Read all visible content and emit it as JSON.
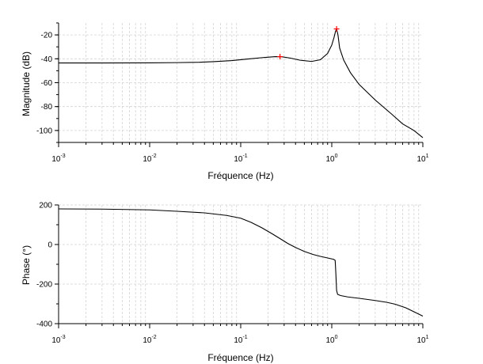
{
  "chart_data": [
    {
      "type": "line",
      "title": "",
      "xlabel": "Fréquence (Hz)",
      "ylabel": "Magnitude (dB)",
      "xscale": "log",
      "xlim": [
        0.001,
        10
      ],
      "ylim": [
        -110,
        -10
      ],
      "xtick_labels": [
        {
          "base": "10",
          "exp": "-3"
        },
        {
          "base": "10",
          "exp": "-2"
        },
        {
          "base": "10",
          "exp": "-1"
        },
        {
          "base": "10",
          "exp": "0"
        },
        {
          "base": "10",
          "exp": "1"
        }
      ],
      "yticks": [
        -20,
        -40,
        -60,
        -80,
        -100
      ],
      "ytick_labels": [
        "-20",
        "-40",
        "-60",
        "-80",
        "-100"
      ],
      "grid": true,
      "series": [
        {
          "color": "#000000",
          "x": [
            0.001,
            0.003,
            0.01,
            0.02,
            0.035,
            0.05,
            0.08,
            0.12,
            0.18,
            0.24,
            0.28,
            0.35,
            0.45,
            0.6,
            0.75,
            0.9,
            1.0,
            1.06,
            1.1,
            1.13,
            1.17,
            1.22,
            1.35,
            1.6,
            2.0,
            3.0,
            4.5,
            6.0,
            8.0,
            10.0
          ],
          "y": [
            -43.5,
            -43.5,
            -43.4,
            -43.2,
            -42.9,
            -42.4,
            -41.5,
            -40.2,
            -38.9,
            -38.2,
            -38.3,
            -39.4,
            -41.2,
            -42.2,
            -40.8,
            -35.5,
            -28.5,
            -22.0,
            -17.0,
            -15.0,
            -20.0,
            -31.0,
            -41.0,
            -51.5,
            -61.5,
            -74.5,
            -86.0,
            -94.5,
            -100.0,
            -106.0
          ]
        }
      ],
      "markers": [
        {
          "x": 0.27,
          "y": -38.2,
          "color": "#ff0000"
        },
        {
          "x": 1.13,
          "y": -15.0,
          "color": "#ff0000"
        }
      ]
    },
    {
      "type": "line",
      "title": "",
      "xlabel": "Fréquence (Hz)",
      "ylabel": "Phase (°)",
      "xscale": "log",
      "xlim": [
        0.001,
        10
      ],
      "ylim": [
        -400,
        200
      ],
      "xtick_labels": [
        {
          "base": "10",
          "exp": "-3"
        },
        {
          "base": "10",
          "exp": "-2"
        },
        {
          "base": "10",
          "exp": "-1"
        },
        {
          "base": "10",
          "exp": "0"
        },
        {
          "base": "10",
          "exp": "1"
        }
      ],
      "yticks": [
        200,
        0,
        -200,
        -400
      ],
      "ytick_labels": [
        "200",
        "0",
        "-200",
        "-400"
      ],
      "grid": true,
      "series": [
        {
          "color": "#000000",
          "x": [
            0.001,
            0.003,
            0.01,
            0.02,
            0.04,
            0.07,
            0.1,
            0.13,
            0.17,
            0.22,
            0.27,
            0.33,
            0.4,
            0.5,
            0.62,
            0.75,
            0.9,
            1.05,
            1.09,
            1.11,
            1.13,
            1.16,
            1.25,
            1.5,
            2.0,
            3.0,
            4.0,
            5.0,
            6.5,
            8.0,
            10.0
          ],
          "y": [
            180,
            179,
            175,
            168,
            160,
            147,
            133,
            112,
            85,
            55,
            30,
            5,
            -15,
            -35,
            -50,
            -60,
            -68,
            -75,
            -80,
            -150,
            -232,
            -252,
            -258,
            -265,
            -272,
            -283,
            -292,
            -302,
            -320,
            -340,
            -362
          ]
        }
      ]
    }
  ]
}
